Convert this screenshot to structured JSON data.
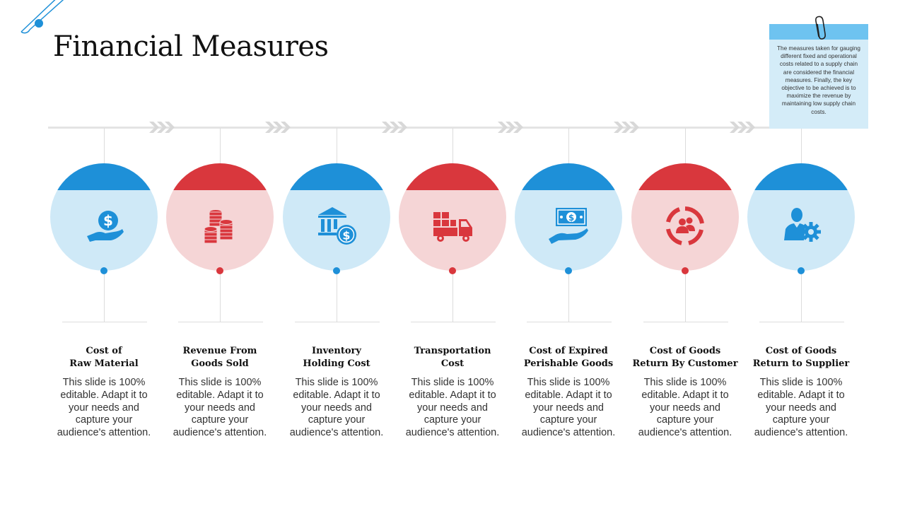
{
  "title": "Financial Measures",
  "note": {
    "text": "The measures taken for gauging different fixed and operational costs related to a supply chain are considered the financial measures. Finally, the key objective to be achieved is to maximize the revenue by maintaining low supply chain costs."
  },
  "colors": {
    "blue": "#1e90d8",
    "blue_light": "#cfe9f7",
    "red": "#d9373d",
    "red_light": "#f5d5d6",
    "note_bar": "#6ec3f0",
    "note_body": "#d4ecf8"
  },
  "steps": [
    {
      "title_line1": "Cost of",
      "title_line2": "Raw Material",
      "description": "This slide is 100% editable. Adapt it to your needs and capture your audience's attention.",
      "icon": "hand-dollar-icon",
      "theme": "blue"
    },
    {
      "title_line1": "Revenue From",
      "title_line2": "Goods Sold",
      "description": "This slide is 100% editable. Adapt it to your needs and capture your audience's attention.",
      "icon": "coin-stacks-icon",
      "theme": "red"
    },
    {
      "title_line1": "Inventory",
      "title_line2": "Holding Cost",
      "description": "This slide is 100% editable. Adapt it to your needs and capture your audience's attention.",
      "icon": "bank-dollar-icon",
      "theme": "blue"
    },
    {
      "title_line1": "Transportation",
      "title_line2": "Cost",
      "description": "This slide is 100% editable. Adapt it to your needs and capture your audience's attention.",
      "icon": "delivery-truck-icon",
      "theme": "red"
    },
    {
      "title_line1": "Cost of Expired",
      "title_line2": "Perishable Goods",
      "description": "This slide is 100% editable. Adapt it to your needs and capture your audience's attention.",
      "icon": "hand-banknote-icon",
      "theme": "blue"
    },
    {
      "title_line1": "Cost of Goods",
      "title_line2": "Return By Customer",
      "description": "This slide is 100% editable. Adapt it to your needs and capture your audience's attention.",
      "icon": "customer-cycle-icon",
      "theme": "red"
    },
    {
      "title_line1": "Cost of Goods",
      "title_line2": "Return to Supplier",
      "description": "This slide is 100% editable. Adapt it to your needs and capture your audience's attention.",
      "icon": "supplier-gear-icon",
      "theme": "blue"
    }
  ]
}
